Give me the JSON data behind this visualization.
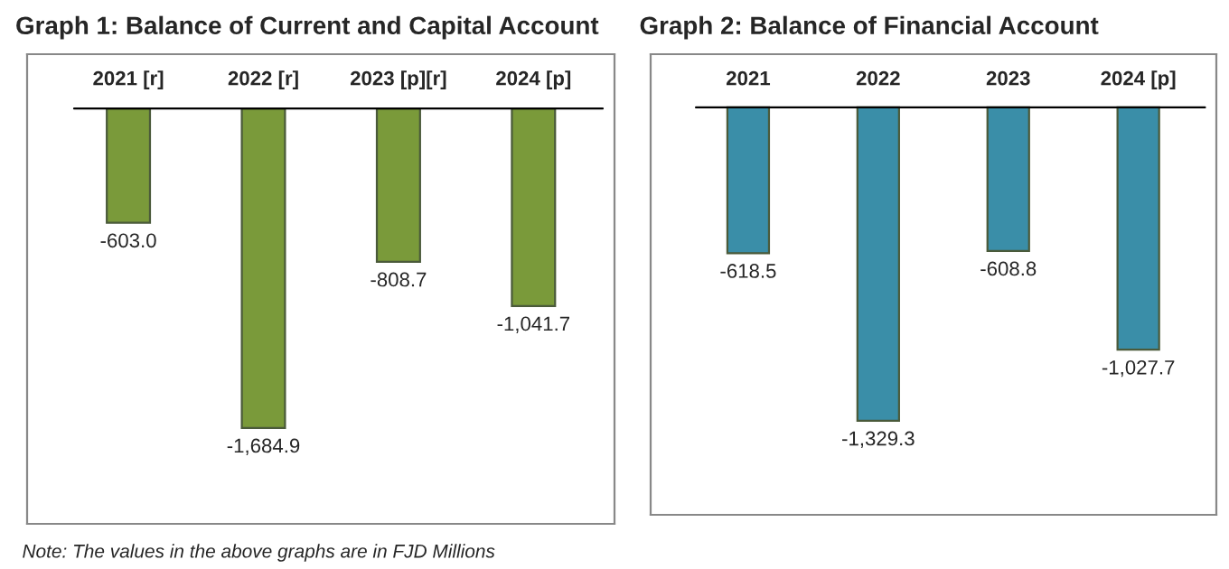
{
  "chart_data": [
    {
      "type": "bar",
      "title": "Graph 1: Balance of Current and Capital Account",
      "categories": [
        "2021 [r]",
        "2022 [r]",
        "2023 [p][r]",
        "2024 [p]"
      ],
      "values": [
        -603.0,
        -1684.9,
        -808.7,
        -1041.7
      ],
      "value_labels": [
        "-603.0",
        "-1,684.9",
        "-808.7",
        "-1,041.7"
      ],
      "color": "#7a9a3a",
      "grid": false,
      "legend": false,
      "annotations": [
        "Note: The values in the above graphs are in FJD Millions"
      ]
    },
    {
      "type": "bar",
      "title": "Graph 2: Balance of Financial Account",
      "categories": [
        "2021",
        "2022",
        "2023",
        "2024 [p]"
      ],
      "values": [
        -618.5,
        -1329.3,
        -608.8,
        -1027.7
      ],
      "value_labels": [
        "-618.5",
        "-1,329.3",
        "-608.8",
        "-1,027.7"
      ],
      "color": "#3a8ea8",
      "grid": false,
      "legend": false
    }
  ]
}
